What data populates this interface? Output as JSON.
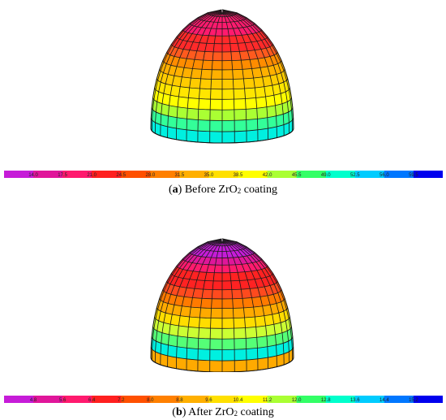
{
  "panels": [
    {
      "id": "a",
      "caption": {
        "open": "(",
        "letter": "a",
        "close": ")",
        "before": " Before ZrO",
        "sub": "2",
        "after": " coating"
      },
      "legend_labels": [
        "14.0",
        "17.5",
        "21.0",
        "24.5",
        "28.0",
        "31.5",
        "35.0",
        "38.5",
        "42.0",
        "45.5",
        "49.0",
        "52.5",
        "56.0",
        "59.5"
      ],
      "band_colors": [
        "#ff1a6e",
        "#ff1a6e",
        "#ff1a6e",
        "#ff1a6e",
        "#ff2a2a",
        "#ff2a2a",
        "#ff5a1e",
        "#ff8c00",
        "#ffb000",
        "#ffcc00",
        "#ffe600",
        "#ffff00",
        "#aaff33",
        "#33ff99",
        "#00f0e0"
      ]
    },
    {
      "id": "b",
      "caption": {
        "open": "(",
        "letter": "b",
        "close": ")",
        "before": " After ZrO",
        "sub": "2",
        "after": " coating"
      },
      "legend_labels": [
        "4.8",
        "5.6",
        "6.4",
        "7.2",
        "8.0",
        "8.8",
        "9.6",
        "10.4",
        "11.2",
        "12.0",
        "12.8",
        "13.6",
        "14.4",
        "15.2"
      ],
      "band_colors": [
        "#c61cd8",
        "#c61cd8",
        "#c61cd8",
        "#e0169a",
        "#ff1a6e",
        "#ff2222",
        "#ff2222",
        "#ff4a1e",
        "#ff7a00",
        "#ffaa00",
        "#ffdd00",
        "#ccff33",
        "#55ff77",
        "#00f0e0",
        "#ffaa00"
      ]
    }
  ],
  "colorbar_colors": [
    "#c61cd8",
    "#e0169a",
    "#ff1a6e",
    "#ff2020",
    "#ff5000",
    "#ff8000",
    "#ffb000",
    "#ffe000",
    "#ffff00",
    "#aaff33",
    "#33ff66",
    "#00ffcc",
    "#00ccff",
    "#0077ff",
    "#0000ee"
  ]
}
